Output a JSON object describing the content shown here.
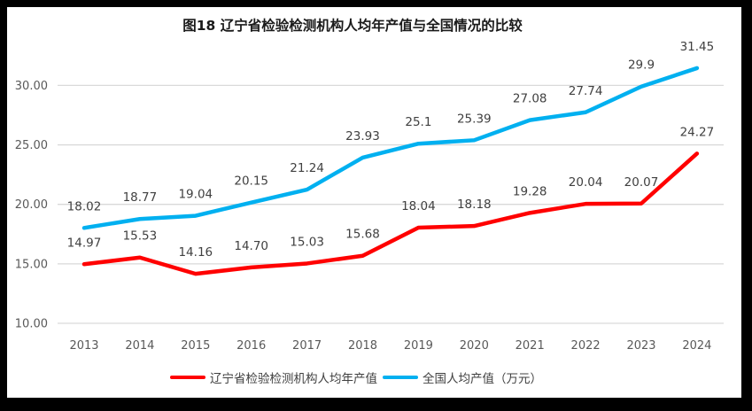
{
  "title": "图18 辽宁省检验检测机构人均年产值与全国情况的比较",
  "chart_data": {
    "type": "line",
    "categories": [
      "2013",
      "2014",
      "2015",
      "2016",
      "2017",
      "2018",
      "2019",
      "2020",
      "2021",
      "2022",
      "2023",
      "2024"
    ],
    "series": [
      {
        "name": "辽宁省检验检测机构人均年产值",
        "color": "#FF0000",
        "values": [
          14.97,
          15.53,
          14.16,
          14.7,
          15.03,
          15.68,
          18.04,
          18.18,
          19.28,
          20.04,
          20.07,
          24.27
        ],
        "labels": [
          "14.97",
          "15.53",
          "14.16",
          "14.70",
          "15.03",
          "15.68",
          "18.04",
          "18.18",
          "19.28",
          "20.04",
          "20.07",
          "24.27"
        ]
      },
      {
        "name": "全国人均产值（万元）",
        "color": "#00B0F0",
        "values": [
          18.02,
          18.77,
          19.04,
          20.15,
          21.24,
          23.93,
          25.1,
          25.39,
          27.08,
          27.74,
          29.9,
          31.45
        ],
        "labels": [
          "18.02",
          "18.77",
          "19.04",
          "20.15",
          "21.24",
          "23.93",
          "25.1",
          "25.39",
          "27.08",
          "27.74",
          "29.9",
          "31.45"
        ]
      }
    ],
    "y_axis": {
      "min": 10,
      "max": 30,
      "step": 5,
      "tick_labels": [
        "10.00",
        "15.00",
        "20.00",
        "25.00",
        "30.00"
      ]
    },
    "x_axis_label": "",
    "ylabel": "",
    "grid": true,
    "legend_position": "bottom",
    "colors": {
      "gridline": "#D9D9D9",
      "axis_text": "#595959",
      "data_label": "#404040"
    }
  },
  "legend": {
    "items": [
      {
        "label": "辽宁省检验检测机构人均年产值",
        "color": "#FF0000"
      },
      {
        "label": "全国人均产值（万元）",
        "color": "#00B0F0"
      }
    ]
  }
}
